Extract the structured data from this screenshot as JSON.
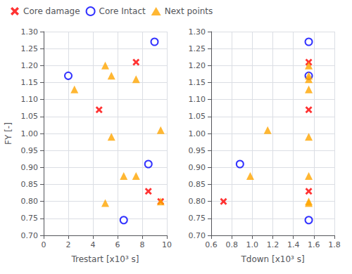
{
  "chart_data": {
    "type": "scatter",
    "xlabel": "Trestart [x10³ s]",
    "ylabel": "Tdown [x10³ s]",
    "zlabel": "FY [-]",
    "xlim": [
      0,
      10
    ],
    "xticks": [
      0,
      2,
      4,
      6,
      8,
      10
    ],
    "ylim": [
      0.6,
      1.8
    ],
    "yticks": [
      0.6,
      0.8,
      {
        "value": 1.0,
        "label": "1.0"
      },
      1.2,
      1.4,
      1.6,
      1.8
    ],
    "zlim": [
      0.7,
      1.3
    ],
    "zticks": [
      {
        "value": 0.7,
        "label": "0.70"
      },
      {
        "value": 0.75,
        "label": "0.75"
      },
      {
        "value": 0.8,
        "label": "0.80"
      },
      {
        "value": 0.85,
        "label": "0.85"
      },
      {
        "value": 0.9,
        "label": "0.90"
      },
      {
        "value": 0.95,
        "label": "0.95"
      },
      {
        "value": 1.0,
        "label": "1.00"
      },
      {
        "value": 1.05,
        "label": "1.05"
      },
      {
        "value": 1.1,
        "label": "1.10"
      },
      {
        "value": 1.15,
        "label": "1.15"
      },
      {
        "value": 1.2,
        "label": "1.20"
      },
      {
        "value": 1.25,
        "label": "1.25"
      },
      {
        "value": 1.3,
        "label": "1.30"
      }
    ],
    "grid": true,
    "legend": "upper left",
    "series": [
      {
        "name": "Core damage",
        "color": "red",
        "marker": "cross",
        "x": [
          4.5,
          9.5,
          8.5,
          7.5
        ],
        "y": [
          1.55,
          0.72,
          1.55,
          1.55
        ],
        "z": [
          1.07,
          0.8,
          0.83,
          1.21
        ]
      },
      {
        "name": "Core Intact",
        "color": "blue",
        "marker": "open_circle",
        "x": [
          2.0,
          9.0,
          8.5,
          6.5
        ],
        "y": [
          1.55,
          1.55,
          0.88,
          1.55
        ],
        "z": [
          1.17,
          1.27,
          0.91,
          0.745
        ]
      },
      {
        "name": "Next points",
        "color": "orange",
        "marker": "triangle",
        "x": [
          2.5,
          5.0,
          5.5,
          5.5,
          7.5,
          9.5,
          6.5,
          5.0,
          9.5,
          7.5
        ],
        "y": [
          1.55,
          1.55,
          1.55,
          1.55,
          1.55,
          1.55,
          1.55,
          1.55,
          1.15,
          0.98
        ],
        "z": [
          1.13,
          1.2,
          1.17,
          0.99,
          1.16,
          0.8,
          0.875,
          0.795,
          1.01,
          0.875
        ]
      }
    ]
  }
}
